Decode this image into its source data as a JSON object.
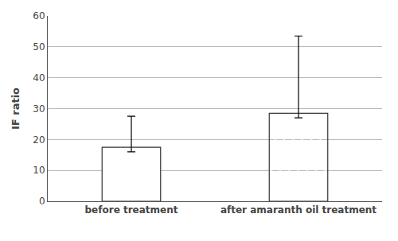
{
  "chart_data": {
    "type": "bar",
    "categories": [
      "before treatment",
      "after amaranth oil treatment"
    ],
    "values": [
      17.5,
      28.5
    ],
    "lower_errors": [
      1.5,
      1.5
    ],
    "upper_errors": [
      10.0,
      25.0
    ],
    "colors": [
      "white",
      "white"
    ],
    "ylabel": "IF ratio",
    "ylim": [
      0,
      60
    ],
    "yticks": [
      0,
      10,
      20,
      30,
      40,
      50,
      60
    ],
    "grid": true
  }
}
